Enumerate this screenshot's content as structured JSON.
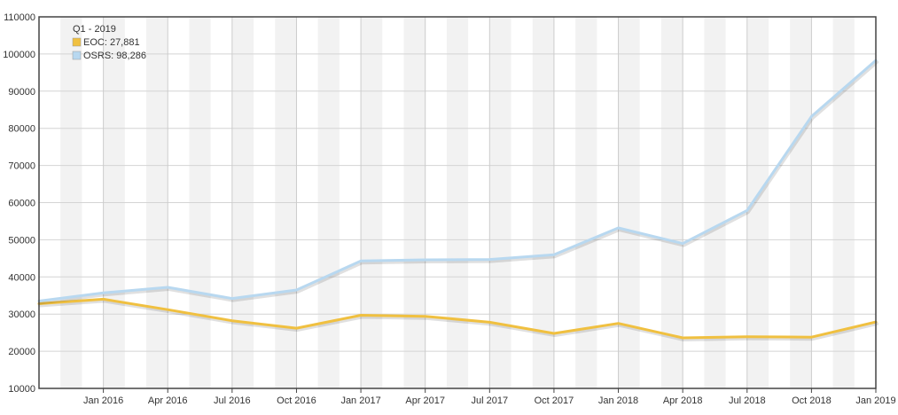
{
  "chart_data": {
    "type": "line",
    "title": "",
    "xlabel": "",
    "ylabel": "",
    "ylim": [
      10000,
      110000
    ],
    "y_ticks": [
      10000,
      20000,
      30000,
      40000,
      50000,
      60000,
      70000,
      80000,
      90000,
      100000,
      110000
    ],
    "x_tick_labels": [
      "Jan 2016",
      "Apr 2016",
      "Jul 2016",
      "Oct 2016",
      "Jan 2017",
      "Apr 2017",
      "Jul 2017",
      "Oct 2017",
      "Jan 2018",
      "Apr 2018",
      "Jul 2018",
      "Oct 2018",
      "Jan 2019"
    ],
    "x": [
      "Oct 2015",
      "Jan 2016",
      "Apr 2016",
      "Jul 2016",
      "Oct 2016",
      "Jan 2017",
      "Apr 2017",
      "Jul 2017",
      "Oct 2017",
      "Jan 2018",
      "Apr 2018",
      "Jul 2018",
      "Oct 2018",
      "Jan 2019"
    ],
    "series": [
      {
        "name": "EOC",
        "color": "#f0c040",
        "values": [
          32800,
          34000,
          31200,
          28200,
          26200,
          29700,
          29400,
          27800,
          24800,
          27500,
          23600,
          23900,
          23800,
          27881
        ]
      },
      {
        "name": "OSRS",
        "color": "#b8d8f0",
        "values": [
          33500,
          35700,
          37200,
          34200,
          36500,
          44300,
          44600,
          44700,
          46000,
          53200,
          49000,
          57900,
          83200,
          98286
        ]
      }
    ],
    "legend": {
      "position": "top-left",
      "header": "Q1 - 2019",
      "entries": [
        "EOC: 27,881",
        "OSRS: 98,286"
      ]
    },
    "grid": true,
    "alternating_bands": true
  }
}
